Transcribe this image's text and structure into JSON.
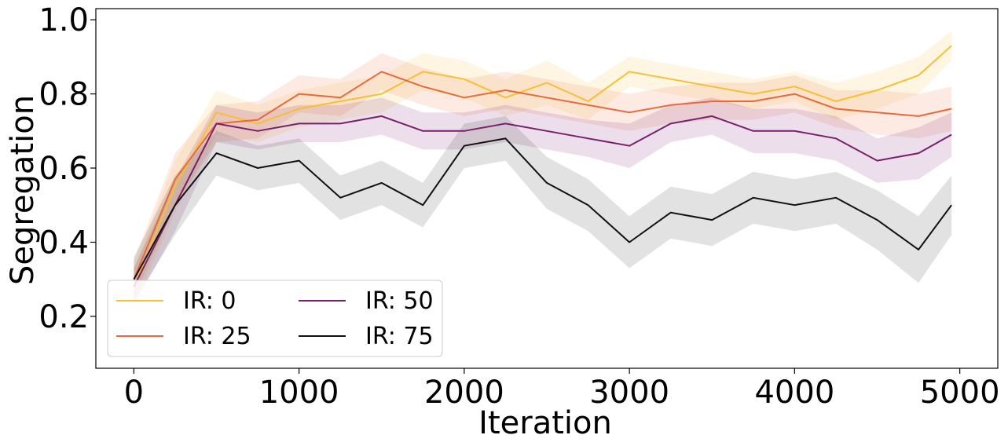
{
  "chart_data": {
    "type": "line",
    "title": "",
    "xlabel": "Iteration",
    "ylabel": "Segregation",
    "xlim": [
      -230,
      5230
    ],
    "ylim": [
      0.06,
      1.03
    ],
    "xticks": [
      0,
      1000,
      2000,
      3000,
      4000,
      5000
    ],
    "xtick_labels": [
      "0",
      "1000",
      "2000",
      "3000",
      "4000",
      "5000"
    ],
    "yticks": [
      0.2,
      0.4,
      0.6,
      0.8,
      1.0
    ],
    "ytick_labels": [
      "0.2",
      "0.4",
      "0.6",
      "0.8",
      "1.0"
    ],
    "grid": false,
    "legend": {
      "position": "lower-left",
      "columns": 2
    },
    "x": [
      0,
      250,
      500,
      750,
      1000,
      1250,
      1500,
      1750,
      2000,
      2250,
      2500,
      2750,
      3000,
      3250,
      3500,
      3750,
      4000,
      4250,
      4500,
      4750,
      4950
    ],
    "series": [
      {
        "name": "IR: 0",
        "color": "#f5c032",
        "values": [
          0.28,
          0.55,
          0.75,
          0.72,
          0.76,
          0.78,
          0.8,
          0.86,
          0.84,
          0.79,
          0.83,
          0.78,
          0.86,
          0.84,
          0.82,
          0.8,
          0.82,
          0.78,
          0.81,
          0.85,
          0.93
        ],
        "band": [
          0.05,
          0.07,
          0.06,
          0.05,
          0.05,
          0.05,
          0.05,
          0.05,
          0.05,
          0.05,
          0.06,
          0.05,
          0.04,
          0.04,
          0.04,
          0.04,
          0.04,
          0.05,
          0.05,
          0.05,
          0.04
        ]
      },
      {
        "name": "IR: 25",
        "color": "#e8693a",
        "values": [
          0.3,
          0.57,
          0.72,
          0.73,
          0.8,
          0.79,
          0.86,
          0.82,
          0.79,
          0.81,
          0.79,
          0.77,
          0.75,
          0.77,
          0.78,
          0.78,
          0.8,
          0.76,
          0.75,
          0.74,
          0.76
        ],
        "band": [
          0.05,
          0.07,
          0.05,
          0.05,
          0.05,
          0.05,
          0.05,
          0.05,
          0.05,
          0.05,
          0.05,
          0.05,
          0.05,
          0.05,
          0.05,
          0.05,
          0.05,
          0.05,
          0.06,
          0.06,
          0.06
        ]
      },
      {
        "name": "IR: 50",
        "color": "#7a1f6e",
        "values": [
          0.28,
          0.5,
          0.72,
          0.7,
          0.72,
          0.72,
          0.74,
          0.7,
          0.7,
          0.72,
          0.7,
          0.68,
          0.66,
          0.72,
          0.74,
          0.7,
          0.7,
          0.68,
          0.62,
          0.64,
          0.69
        ],
        "band": [
          0.05,
          0.07,
          0.05,
          0.05,
          0.05,
          0.05,
          0.05,
          0.05,
          0.05,
          0.05,
          0.05,
          0.05,
          0.06,
          0.05,
          0.05,
          0.06,
          0.06,
          0.06,
          0.06,
          0.07,
          0.06
        ]
      },
      {
        "name": "IR: 75",
        "color": "#111111",
        "values": [
          0.3,
          0.5,
          0.64,
          0.6,
          0.62,
          0.52,
          0.56,
          0.5,
          0.66,
          0.68,
          0.56,
          0.5,
          0.4,
          0.48,
          0.46,
          0.52,
          0.5,
          0.52,
          0.46,
          0.38,
          0.5
        ],
        "band": [
          0.06,
          0.08,
          0.06,
          0.06,
          0.06,
          0.06,
          0.06,
          0.06,
          0.06,
          0.06,
          0.07,
          0.07,
          0.07,
          0.07,
          0.07,
          0.07,
          0.07,
          0.07,
          0.08,
          0.09,
          0.08
        ]
      }
    ]
  }
}
